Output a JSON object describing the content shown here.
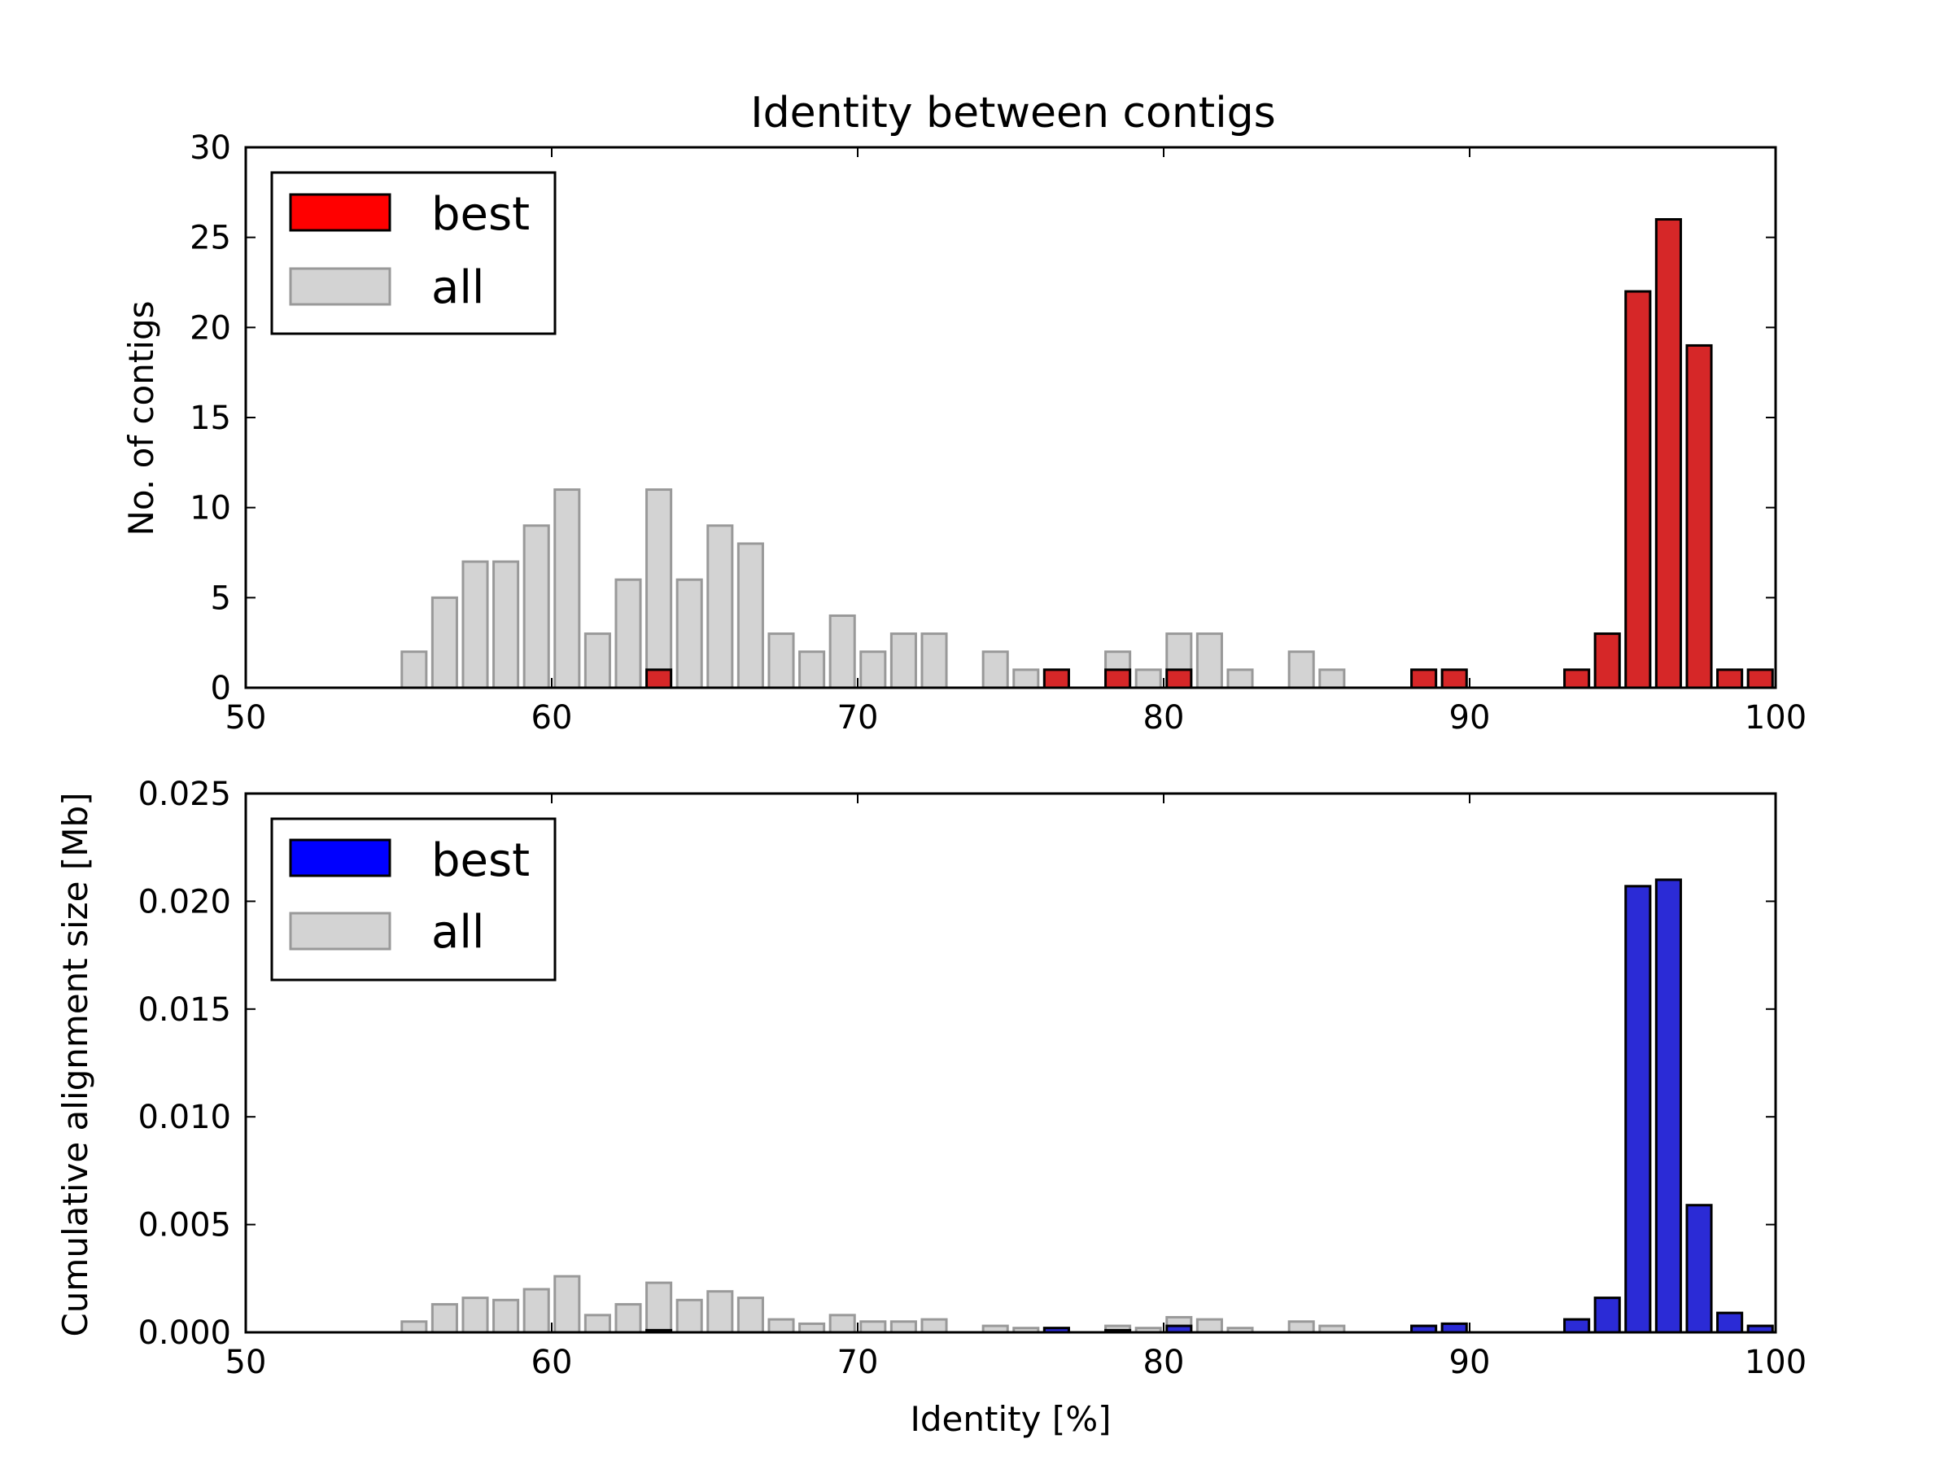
{
  "chart_data": [
    {
      "type": "bar",
      "title": "Identity between contigs",
      "xlabel": "",
      "ylabel": "No. of contigs",
      "xlim": [
        50,
        100
      ],
      "ylim": [
        0,
        30
      ],
      "xticks": [
        "50",
        "60",
        "70",
        "80",
        "90",
        "100"
      ],
      "yticks": [
        "0",
        "5",
        "10",
        "15",
        "20",
        "25",
        "30"
      ],
      "grid": false,
      "legend_position": "top-left",
      "x": [
        55.5,
        56.5,
        57.5,
        58.5,
        59.5,
        60.5,
        61.5,
        62.5,
        63.5,
        64.5,
        65.5,
        66.5,
        67.5,
        68.5,
        69.5,
        70.5,
        71.5,
        72.5,
        74.5,
        75.5,
        76.5,
        78.5,
        79.5,
        80.5,
        81.5,
        82.5,
        84.5,
        85.5,
        88.5,
        89.5,
        93.5,
        94.5,
        95.5,
        96.5,
        97.5,
        98.5,
        99.5
      ],
      "series": [
        {
          "name": "all",
          "color": "#d3d3d3",
          "edge_color": "#999999",
          "values": [
            2,
            5,
            7,
            7,
            9,
            11,
            3,
            6,
            11,
            6,
            9,
            8,
            3,
            2,
            4,
            2,
            3,
            3,
            2,
            1,
            1,
            2,
            1,
            3,
            3,
            1,
            2,
            1,
            1,
            1,
            1,
            3,
            22,
            26,
            19,
            1,
            1
          ]
        },
        {
          "name": "best",
          "color": "#d62728",
          "legend_color": "#ff0000",
          "edge_color": "#000000",
          "values": [
            0,
            0,
            0,
            0,
            0,
            0,
            0,
            0,
            1,
            0,
            0,
            0,
            0,
            0,
            0,
            0,
            0,
            0,
            0,
            0,
            1,
            1,
            0,
            1,
            0,
            0,
            0,
            0,
            1,
            1,
            1,
            3,
            22,
            26,
            19,
            1,
            1
          ]
        }
      ]
    },
    {
      "type": "bar",
      "title": "",
      "xlabel": "Identity [%]",
      "ylabel": "Cumulative alignment size [Mb]",
      "xlim": [
        50,
        100
      ],
      "ylim": [
        0,
        0.025
      ],
      "xticks": [
        "50",
        "60",
        "70",
        "80",
        "90",
        "100"
      ],
      "yticks": [
        "0.000",
        "0.005",
        "0.010",
        "0.015",
        "0.020",
        "0.025"
      ],
      "grid": false,
      "legend_position": "top-left",
      "x": [
        55.5,
        56.5,
        57.5,
        58.5,
        59.5,
        60.5,
        61.5,
        62.5,
        63.5,
        64.5,
        65.5,
        66.5,
        67.5,
        68.5,
        69.5,
        70.5,
        71.5,
        72.5,
        74.5,
        75.5,
        76.5,
        78.5,
        79.5,
        80.5,
        81.5,
        82.5,
        84.5,
        85.5,
        88.5,
        89.5,
        93.5,
        94.5,
        95.5,
        96.5,
        97.5,
        98.5,
        99.5
      ],
      "series": [
        {
          "name": "all",
          "color": "#d3d3d3",
          "edge_color": "#999999",
          "values": [
            0.0005,
            0.0013,
            0.0016,
            0.0015,
            0.002,
            0.0026,
            0.0008,
            0.0013,
            0.0023,
            0.0015,
            0.0019,
            0.0016,
            0.0006,
            0.0004,
            0.0008,
            0.0005,
            0.0005,
            0.0006,
            0.0003,
            0.0002,
            0.0002,
            0.0003,
            0.0002,
            0.0007,
            0.0006,
            0.0002,
            0.0005,
            0.0003,
            0.0003,
            0.0004,
            0.0006,
            0.0016,
            0.0207,
            0.021,
            0.0059,
            0.0009,
            0.0003
          ]
        },
        {
          "name": "best",
          "color": "#2b2bd6",
          "legend_color": "#0000ff",
          "edge_color": "#000000",
          "values": [
            0,
            0,
            0,
            0,
            0,
            0,
            0,
            0,
            0.0001,
            0,
            0,
            0,
            0,
            0,
            0,
            0,
            0,
            0,
            0,
            0,
            0.0002,
            0.0001,
            0,
            0.0003,
            0,
            0,
            0,
            0,
            0.0003,
            0.0004,
            0.0006,
            0.0016,
            0.0207,
            0.021,
            0.0059,
            0.0009,
            0.0003
          ]
        }
      ]
    }
  ]
}
